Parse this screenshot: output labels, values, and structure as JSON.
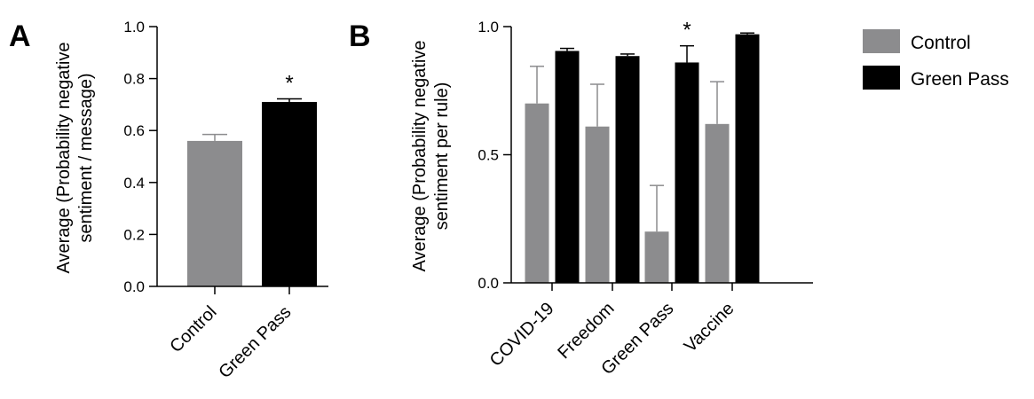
{
  "colors": {
    "control": "#8c8c8e",
    "green_pass": "#000000"
  },
  "legend": {
    "items": [
      {
        "label": "Control",
        "color": "#8c8c8e"
      },
      {
        "label": "Green Pass",
        "color": "#000000"
      }
    ],
    "placement": "right"
  },
  "chart_data": [
    {
      "panel_label": "A",
      "type": "bar",
      "ylabel": "Average (Probability negative sentiment / message)",
      "ylabel_lines": [
        "Average (Probability negative",
        "sentiment / message)"
      ],
      "ylim": [
        0,
        1.0
      ],
      "yticks": [
        0.0,
        0.2,
        0.4,
        0.6,
        0.8,
        1.0
      ],
      "ytick_labels": [
        "0.0",
        "0.2",
        "0.4",
        "0.6",
        "0.8",
        "1.0"
      ],
      "categories": [
        "Control",
        "Green Pass"
      ],
      "values": [
        0.56,
        0.71
      ],
      "errors": [
        0.025,
        0.012
      ],
      "bar_colors": [
        "#8c8c8e",
        "#000000"
      ],
      "significance": [
        "",
        "*"
      ]
    },
    {
      "panel_label": "B",
      "type": "bar",
      "ylabel": "Average (Probability negative sentiment per rule)",
      "ylabel_lines": [
        "Average (Probability negative",
        "sentiment per rule)"
      ],
      "ylim": [
        0,
        1.0
      ],
      "yticks": [
        0.0,
        0.5,
        1.0
      ],
      "ytick_labels": [
        "0.0",
        "0.5",
        "1.0"
      ],
      "categories": [
        "COVID-19",
        "Freedom",
        "Green Pass",
        "Vaccine"
      ],
      "series": [
        {
          "name": "Control",
          "color": "#8c8c8e",
          "values": [
            0.7,
            0.61,
            0.2,
            0.62
          ],
          "errors": [
            0.145,
            0.165,
            0.18,
            0.165
          ]
        },
        {
          "name": "Green Pass",
          "color": "#000000",
          "values": [
            0.905,
            0.885,
            0.86,
            0.97
          ],
          "errors": [
            0.01,
            0.008,
            0.065,
            0.005
          ]
        }
      ],
      "significance": [
        "",
        "",
        "*",
        ""
      ]
    }
  ]
}
